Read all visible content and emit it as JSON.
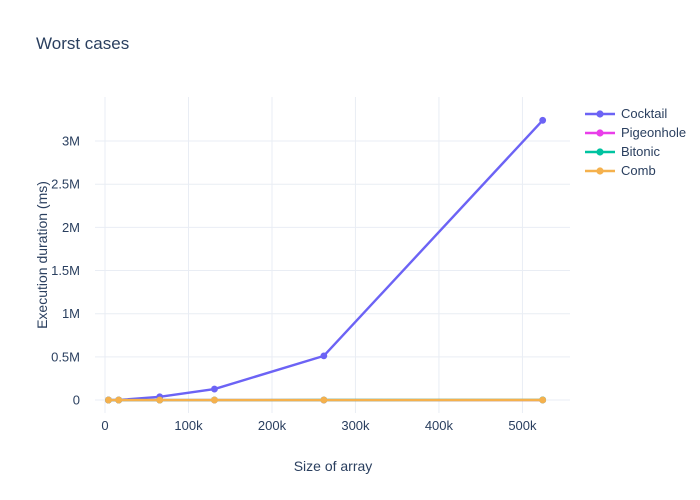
{
  "title": {
    "text": "Worst cases"
  },
  "colors": {
    "text": "#2a3f5f",
    "grid": "#e9edf4",
    "background": "#ffffff"
  },
  "chart_data": {
    "type": "line",
    "title": "Worst cases",
    "xlabel": "Size of array",
    "ylabel": "Execution duration (ms)",
    "x": [
      4096,
      16384,
      65536,
      131072,
      262144,
      524288
    ],
    "series": [
      {
        "name": "Cocktail",
        "color": "#6c63f5",
        "values": [
          30,
          500,
          38000,
          127000,
          512000,
          3240000
        ]
      },
      {
        "name": "Pigeonhole",
        "color": "#e93ee9",
        "values": [
          2,
          8,
          30,
          60,
          120,
          250
        ]
      },
      {
        "name": "Bitonic",
        "color": "#00c3a0",
        "values": [
          5,
          25,
          110,
          240,
          500,
          1050
        ]
      },
      {
        "name": "Comb",
        "color": "#f5b14d",
        "values": [
          3,
          15,
          70,
          150,
          310,
          650
        ]
      }
    ],
    "xticks": {
      "values": [
        0,
        100000,
        200000,
        300000,
        400000,
        500000
      ],
      "labels": [
        "0",
        "100k",
        "200k",
        "300k",
        "400k",
        "500k"
      ]
    },
    "yticks": {
      "values": [
        0,
        500000,
        1000000,
        1500000,
        2000000,
        2500000,
        3000000
      ],
      "labels": [
        "0",
        "0.5M",
        "1M",
        "1.5M",
        "2M",
        "2.5M",
        "3M"
      ]
    },
    "xlim": [
      -12000,
      557000
    ],
    "ylim": [
      -150000,
      3510000
    ],
    "grid": true,
    "legend_position": "right",
    "marker": "circle",
    "note": "Pigeonhole, Bitonic and Comb read as approximately 0 at this axis scale; Comb (orange) is drawn on top of them."
  }
}
